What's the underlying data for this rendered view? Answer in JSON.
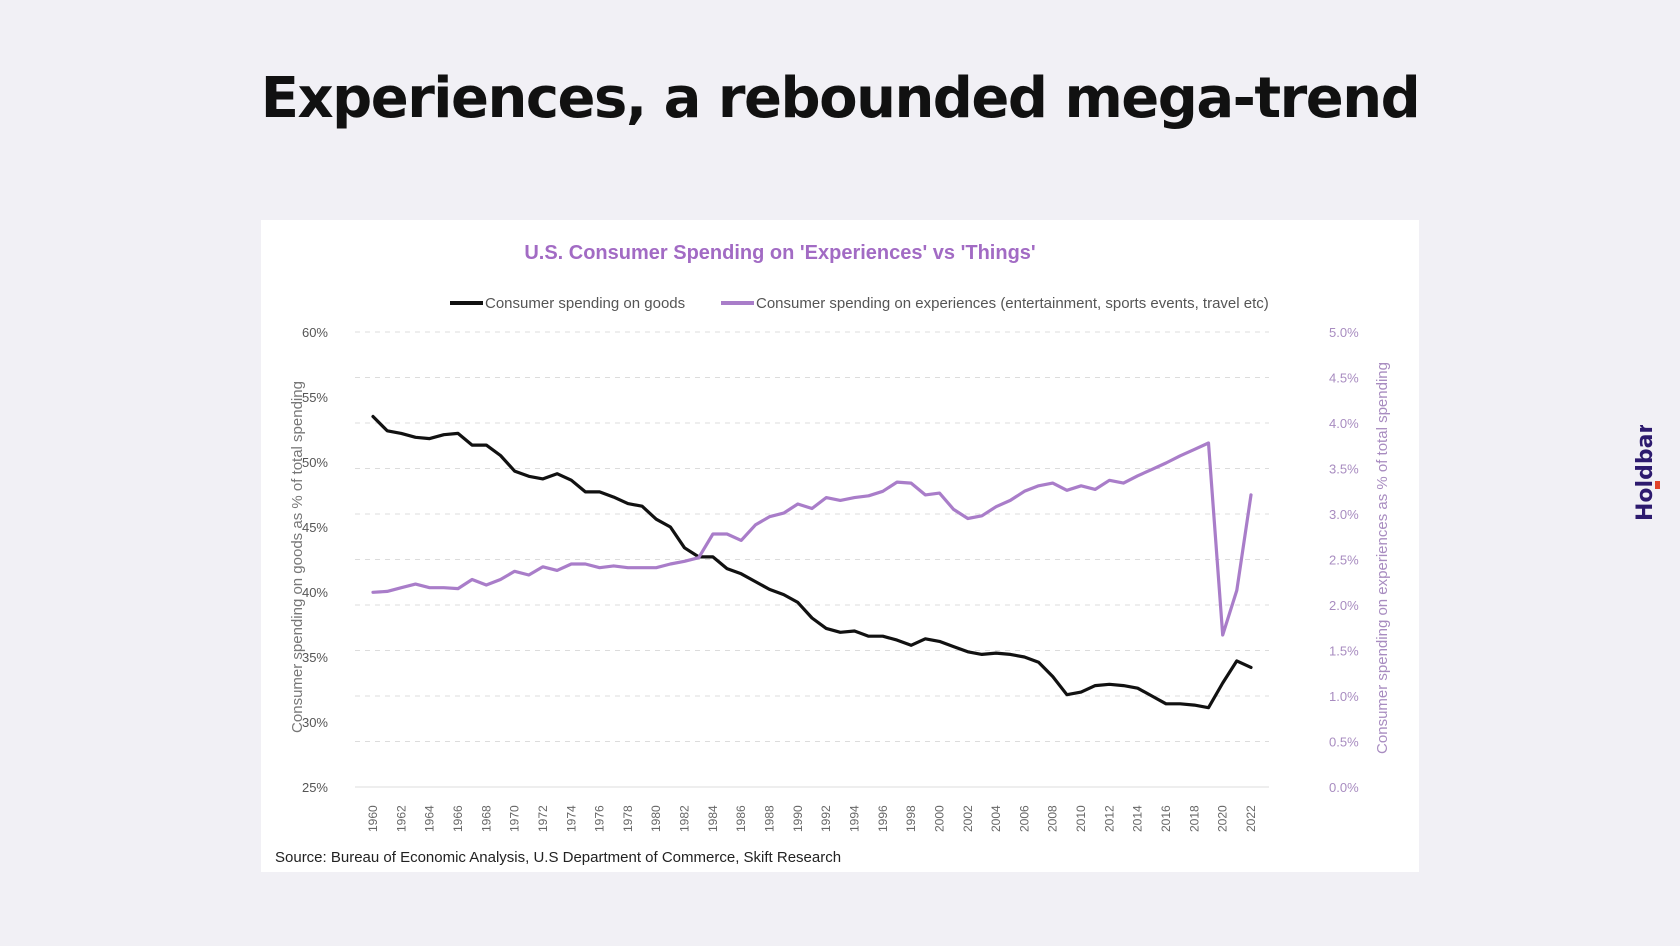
{
  "page": {
    "title": "Experiences, a rebounded mega-trend",
    "logo_text": "Holdbar",
    "logo_color": "#2d1a6e",
    "logo_accent": "#e0432b"
  },
  "chart_data": {
    "type": "line",
    "title": "U.S. Consumer Spending on 'Experiences' vs 'Things'",
    "xlabel": "",
    "ylabel": "Consumer spending on goods as % of total spending",
    "ylabel_right": "Consumer spending on experiences as % of total spending",
    "ylim": [
      25,
      60
    ],
    "ylim_right": [
      0,
      5
    ],
    "yticks": [
      "60%",
      "55%",
      "50%",
      "45%",
      "40%",
      "35%",
      "30%",
      "25%"
    ],
    "yticks_values": [
      60,
      55,
      50,
      45,
      40,
      35,
      30,
      25
    ],
    "yticks_right": [
      "5.0%",
      "4.5%",
      "4.0%",
      "3.5%",
      "3.0%",
      "2.5%",
      "2.0%",
      "1.5%",
      "1.0%",
      "0.5%",
      "0.0%"
    ],
    "yticks_right_values": [
      5.0,
      4.5,
      4.0,
      3.5,
      3.0,
      2.5,
      2.0,
      1.5,
      1.0,
      0.5,
      0.0
    ],
    "grid": true,
    "legend_position": "top",
    "x": [
      1960,
      1961,
      1962,
      1963,
      1964,
      1965,
      1966,
      1967,
      1968,
      1969,
      1970,
      1971,
      1972,
      1973,
      1974,
      1975,
      1976,
      1977,
      1978,
      1979,
      1980,
      1981,
      1982,
      1983,
      1984,
      1985,
      1986,
      1987,
      1988,
      1989,
      1990,
      1991,
      1992,
      1993,
      1994,
      1995,
      1996,
      1997,
      1998,
      1999,
      2000,
      2001,
      2002,
      2003,
      2004,
      2005,
      2006,
      2007,
      2008,
      2009,
      2010,
      2011,
      2012,
      2013,
      2014,
      2015,
      2016,
      2017,
      2018,
      2019,
      2020,
      2021,
      2022
    ],
    "xticks": [
      "1960",
      "1962",
      "1964",
      "1966",
      "1968",
      "1970",
      "1972",
      "1974",
      "1976",
      "1978",
      "1980",
      "1982",
      "1984",
      "1986",
      "1988",
      "1990",
      "1992",
      "1994",
      "1996",
      "1998",
      "2000",
      "2002",
      "2004",
      "2006",
      "2008",
      "2010",
      "2012",
      "2014",
      "2016",
      "2018",
      "2020",
      "2022"
    ],
    "series": [
      {
        "name": "Consumer spending on goods",
        "axis": "left",
        "color": "#111111",
        "values": [
          53.5,
          52.4,
          52.2,
          51.9,
          51.8,
          52.1,
          52.2,
          51.3,
          51.3,
          50.5,
          49.3,
          48.9,
          48.7,
          49.1,
          48.6,
          47.7,
          47.7,
          47.3,
          46.8,
          46.6,
          45.6,
          45.0,
          43.4,
          42.7,
          42.7,
          41.8,
          41.4,
          40.8,
          40.2,
          39.8,
          39.2,
          38.0,
          37.2,
          36.9,
          37.0,
          36.6,
          36.6,
          36.3,
          35.9,
          36.4,
          36.2,
          35.8,
          35.4,
          35.2,
          35.3,
          35.2,
          35.0,
          34.6,
          33.5,
          32.1,
          32.3,
          32.8,
          32.9,
          32.8,
          32.6,
          32.0,
          31.4,
          31.4,
          31.3,
          31.1,
          33.0,
          34.7,
          34.2
        ]
      },
      {
        "name": "Consumer spending on experiences (entertainment, sports events, travel etc)",
        "axis": "right",
        "color": "#a97dc9",
        "values": [
          2.14,
          2.15,
          2.19,
          2.23,
          2.19,
          2.19,
          2.18,
          2.28,
          2.22,
          2.28,
          2.37,
          2.33,
          2.42,
          2.38,
          2.45,
          2.45,
          2.41,
          2.43,
          2.41,
          2.41,
          2.41,
          2.45,
          2.48,
          2.52,
          2.78,
          2.78,
          2.71,
          2.88,
          2.97,
          3.01,
          3.11,
          3.06,
          3.18,
          3.15,
          3.18,
          3.2,
          3.25,
          3.35,
          3.34,
          3.21,
          3.23,
          3.05,
          2.95,
          2.98,
          3.08,
          3.15,
          3.25,
          3.31,
          3.34,
          3.26,
          3.31,
          3.27,
          3.37,
          3.34,
          3.42,
          3.49,
          3.56,
          3.64,
          3.71,
          3.78,
          1.67,
          2.16,
          3.21
        ]
      }
    ],
    "source": "Source: Bureau of Economic Analysis, U.S Department of Commerce, Skift Research"
  }
}
